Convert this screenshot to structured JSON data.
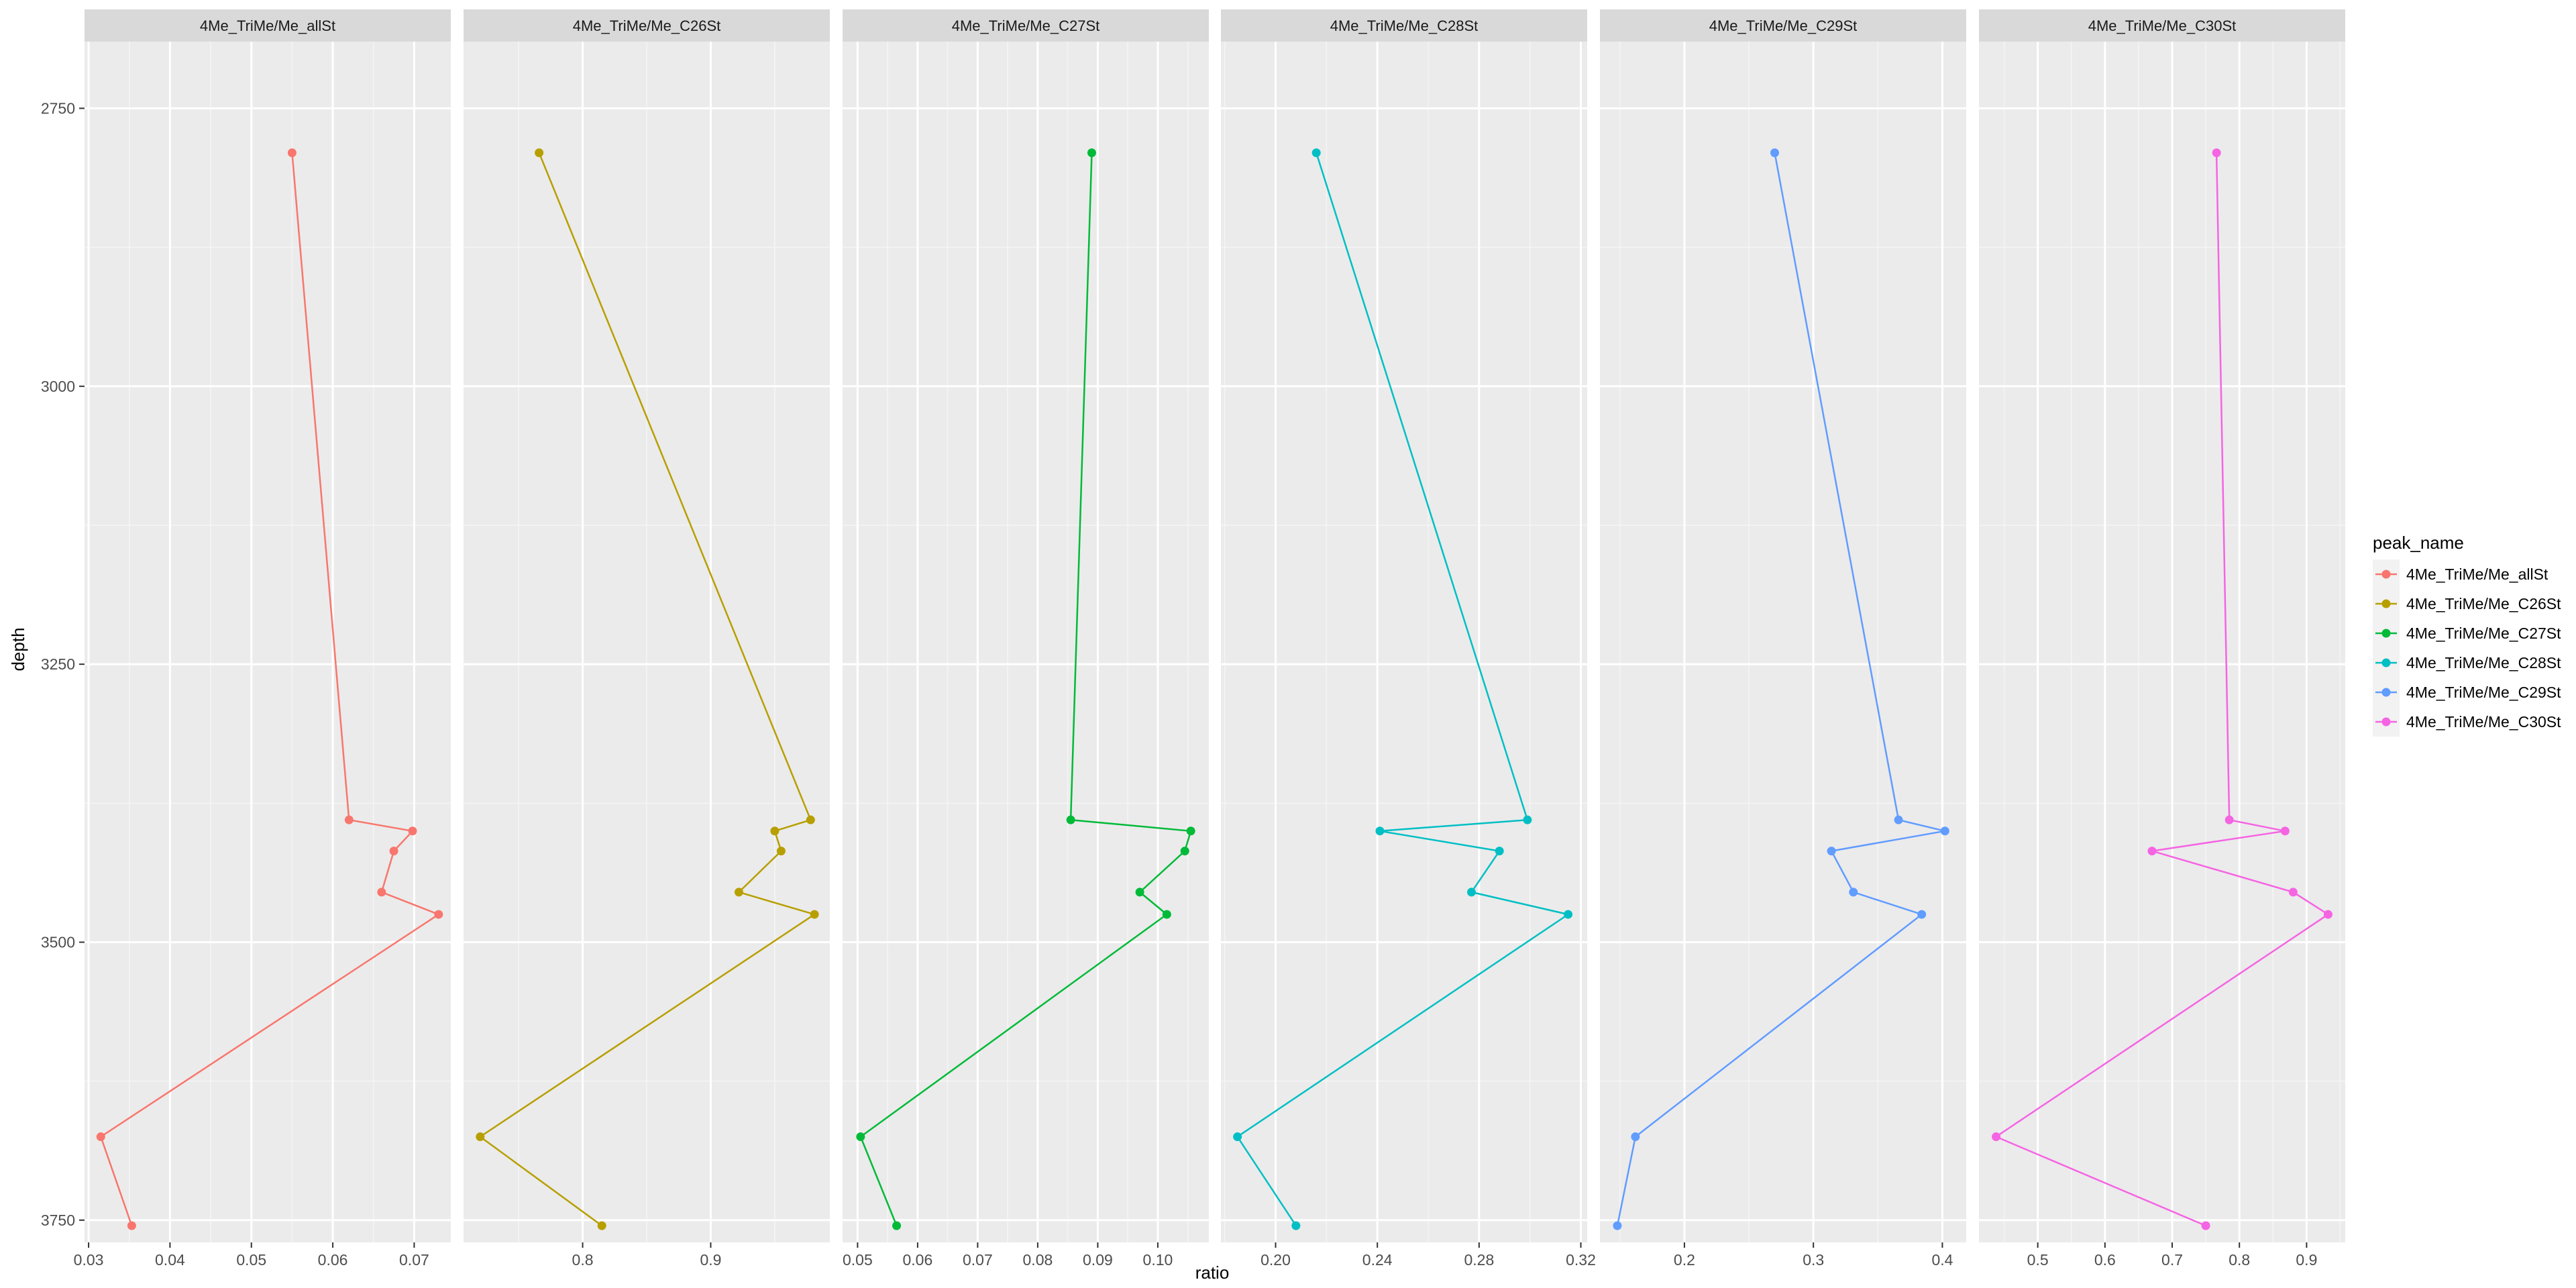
{
  "chart_data": {
    "type": "line",
    "xlabel": "ratio",
    "ylabel": "depth",
    "ylim": [
      2690,
      3770
    ],
    "y_reversed": true,
    "y_ticks": [
      2750,
      3000,
      3250,
      3500,
      3750
    ],
    "facet_layout": "1 row x 6 panels, independent x scales, shared y",
    "grid": true,
    "legend": {
      "title": "peak_name",
      "placement": "right",
      "entries": [
        "4Me_TriMe/Me_allSt",
        "4Me_TriMe/Me_C26St",
        "4Me_TriMe/Me_C27St",
        "4Me_TriMe/Me_C28St",
        "4Me_TriMe/Me_C29St",
        "4Me_TriMe/Me_C30St"
      ]
    },
    "series": [
      {
        "name": "4Me_TriMe/Me_allSt",
        "color": "#F8766D",
        "xlim": [
          0.0295,
          0.0745
        ],
        "x_ticks": [
          0.03,
          0.04,
          0.05,
          0.06,
          0.07
        ],
        "x_tick_labels": [
          "0.03",
          "0.04",
          "0.05",
          "0.06",
          "0.07"
        ],
        "points": [
          {
            "x": 0.055,
            "y": 2790
          },
          {
            "x": 0.062,
            "y": 3390
          },
          {
            "x": 0.0698,
            "y": 3400
          },
          {
            "x": 0.0675,
            "y": 3418
          },
          {
            "x": 0.066,
            "y": 3455
          },
          {
            "x": 0.073,
            "y": 3475
          },
          {
            "x": 0.0315,
            "y": 3675
          },
          {
            "x": 0.0353,
            "y": 3755
          }
        ]
      },
      {
        "name": "4Me_TriMe/Me_C26St",
        "color": "#B79F00",
        "xlim": [
          0.707,
          0.993
        ],
        "x_ticks": [
          0.8,
          0.9
        ],
        "x_tick_labels": [
          "0.8",
          "0.9"
        ],
        "points": [
          {
            "x": 0.766,
            "y": 2790
          },
          {
            "x": 0.978,
            "y": 3390
          },
          {
            "x": 0.95,
            "y": 3400
          },
          {
            "x": 0.955,
            "y": 3418
          },
          {
            "x": 0.922,
            "y": 3455
          },
          {
            "x": 0.981,
            "y": 3475
          },
          {
            "x": 0.72,
            "y": 3675
          },
          {
            "x": 0.815,
            "y": 3755
          }
        ]
      },
      {
        "name": "4Me_TriMe/Me_C27St",
        "color": "#00BA38",
        "xlim": [
          0.0475,
          0.1085
        ],
        "x_ticks": [
          0.05,
          0.06,
          0.07,
          0.08,
          0.09,
          0.1
        ],
        "x_tick_labels": [
          "0.05",
          "0.06",
          "0.07",
          "0.08",
          "0.09",
          "0.10"
        ],
        "points": [
          {
            "x": 0.089,
            "y": 2790
          },
          {
            "x": 0.0855,
            "y": 3390
          },
          {
            "x": 0.1055,
            "y": 3400
          },
          {
            "x": 0.1045,
            "y": 3418
          },
          {
            "x": 0.097,
            "y": 3455
          },
          {
            "x": 0.1015,
            "y": 3475
          },
          {
            "x": 0.0505,
            "y": 3675
          },
          {
            "x": 0.0565,
            "y": 3755
          }
        ]
      },
      {
        "name": "4Me_TriMe/Me_C28St",
        "color": "#00BFC4",
        "xlim": [
          0.1785,
          0.3225
        ],
        "x_ticks": [
          0.2,
          0.24,
          0.28,
          0.32
        ],
        "x_tick_labels": [
          "0.20",
          "0.24",
          "0.28",
          "0.32"
        ],
        "points": [
          {
            "x": 0.216,
            "y": 2790
          },
          {
            "x": 0.299,
            "y": 3390
          },
          {
            "x": 0.241,
            "y": 3400
          },
          {
            "x": 0.288,
            "y": 3418
          },
          {
            "x": 0.277,
            "y": 3455
          },
          {
            "x": 0.315,
            "y": 3475
          },
          {
            "x": 0.185,
            "y": 3675
          },
          {
            "x": 0.208,
            "y": 3755
          }
        ]
      },
      {
        "name": "4Me_TriMe/Me_C29St",
        "color": "#619CFF",
        "xlim": [
          0.1345,
          0.4185
        ],
        "x_ticks": [
          0.2,
          0.3,
          0.4
        ],
        "x_tick_labels": [
          "0.2",
          "0.3",
          "0.4"
        ],
        "points": [
          {
            "x": 0.27,
            "y": 2790
          },
          {
            "x": 0.366,
            "y": 3390
          },
          {
            "x": 0.402,
            "y": 3400
          },
          {
            "x": 0.314,
            "y": 3418
          },
          {
            "x": 0.331,
            "y": 3455
          },
          {
            "x": 0.384,
            "y": 3475
          },
          {
            "x": 0.162,
            "y": 3675
          },
          {
            "x": 0.148,
            "y": 3755
          }
        ]
      },
      {
        "name": "4Me_TriMe/Me_C30St",
        "color": "#F564E3",
        "xlim": [
          0.4125,
          0.9575
        ],
        "x_ticks": [
          0.5,
          0.6,
          0.7,
          0.8,
          0.9
        ],
        "x_tick_labels": [
          "0.5",
          "0.6",
          "0.7",
          "0.8",
          "0.9"
        ],
        "points": [
          {
            "x": 0.766,
            "y": 2790
          },
          {
            "x": 0.785,
            "y": 3390
          },
          {
            "x": 0.868,
            "y": 3400
          },
          {
            "x": 0.67,
            "y": 3418
          },
          {
            "x": 0.88,
            "y": 3455
          },
          {
            "x": 0.932,
            "y": 3475
          },
          {
            "x": 0.438,
            "y": 3675
          },
          {
            "x": 0.75,
            "y": 3755
          }
        ]
      }
    ]
  }
}
